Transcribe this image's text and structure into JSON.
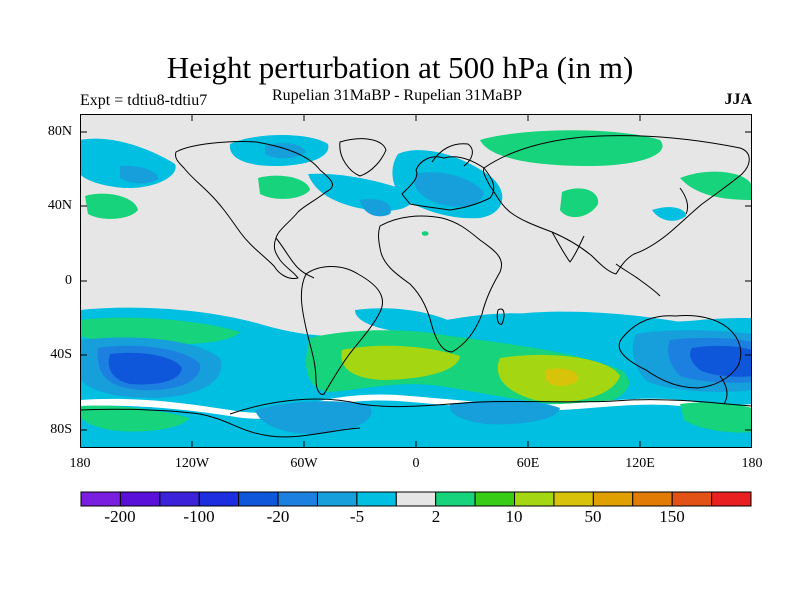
{
  "title": "Height perturbation at 500 hPa (in m)",
  "experiment": "Expt = tdtiu8-tdtiu7",
  "subtitle": "Rupelian  31MaBP - Rupelian  31MaBP",
  "season": "JJA",
  "axes": {
    "lat_ticks": [
      "80N",
      "40N",
      "0",
      "40S",
      "80S"
    ],
    "lon_ticks": [
      "180",
      "120W",
      "60W",
      "0",
      "60E",
      "120E",
      "180"
    ]
  },
  "colorbar": {
    "colors": [
      "#7a1fdf",
      "#5a10d8",
      "#3c22d9",
      "#1c2ee0",
      "#0e57da",
      "#1c80e0",
      "#169fdb",
      "#00bfe0",
      "#e6e6e6",
      "#17d37b",
      "#38cc16",
      "#a4d712",
      "#d9c30a",
      "#e0a100",
      "#e27b05",
      "#e25216",
      "#e82020"
    ],
    "labels": [
      "-200",
      "-100",
      "-20",
      "-5",
      "2",
      "10",
      "50",
      "150"
    ]
  },
  "field_colors": {
    "background": "#e6e6e6",
    "cyan": "#00bfe0",
    "blue": "#169fdb",
    "darkblue": "#1c80e0",
    "deepblue": "#0e57da",
    "green": "#17d37b",
    "lime": "#a4d712",
    "yellow": "#d9c30a",
    "white": "#ffffff"
  }
}
